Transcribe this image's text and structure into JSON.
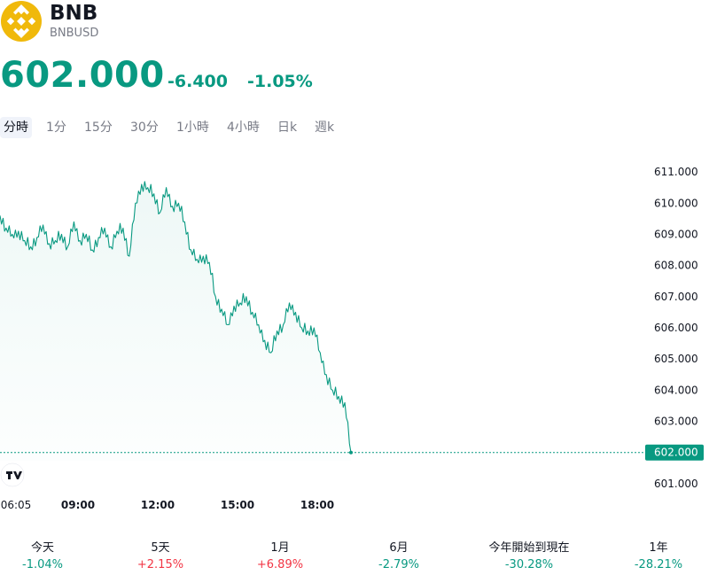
{
  "header": {
    "symbol": "BNB",
    "pair": "BNBUSD",
    "logo_icon": "bnb-logo-icon",
    "logo_color": "#f0b90b"
  },
  "quote": {
    "price": "602.000",
    "change": "-6.400",
    "change_percent": "-1.05%",
    "color": "#089981"
  },
  "tabs": [
    {
      "label": "分時",
      "active": true
    },
    {
      "label": "1分",
      "active": false
    },
    {
      "label": "15分",
      "active": false
    },
    {
      "label": "30分",
      "active": false
    },
    {
      "label": "1小時",
      "active": false
    },
    {
      "label": "4小時",
      "active": false
    },
    {
      "label": "日k",
      "active": false
    },
    {
      "label": "週k",
      "active": false
    }
  ],
  "chart_data": {
    "type": "area",
    "x_ticks": [
      "06:05",
      "09:00",
      "12:00",
      "15:00",
      "18:00"
    ],
    "y_ticks": [
      "611.000",
      "610.000",
      "609.000",
      "608.000",
      "607.000",
      "606.000",
      "605.000",
      "604.000",
      "603.000",
      "602.000",
      "601.000"
    ],
    "ylim": [
      600.6,
      611.4
    ],
    "last_price_label": "602.000",
    "line_color": "#089981",
    "watermark_icon": "tradingview-logo-icon",
    "series": [
      {
        "values": [
          609.6,
          609.2,
          609.0,
          609.1,
          608.8,
          608.6,
          608.9,
          609.3,
          608.7,
          608.8,
          609.0,
          608.6,
          609.4,
          608.8,
          609.0,
          608.5,
          608.9,
          609.2,
          608.6,
          609.1,
          609.2,
          608.3,
          610.0,
          610.6,
          610.5,
          610.3,
          609.7,
          610.5,
          609.9,
          610.0,
          609.4,
          608.5,
          608.2,
          608.3,
          608.1,
          607.0,
          606.6,
          606.1,
          606.7,
          606.8,
          607.0,
          606.5,
          606.1,
          605.6,
          605.2,
          605.9,
          606.1,
          606.8,
          606.5,
          606.0,
          605.9,
          606.0,
          605.2,
          604.5,
          604.0,
          603.8,
          603.6,
          602.0
        ]
      }
    ]
  },
  "performance": [
    {
      "label": "今天",
      "value": "-1.04%",
      "dir": "down"
    },
    {
      "label": "5天",
      "value": "+2.15%",
      "dir": "up"
    },
    {
      "label": "1月",
      "value": "+6.89%",
      "dir": "up"
    },
    {
      "label": "6月",
      "value": "-2.79%",
      "dir": "down"
    },
    {
      "label": "今年開始到現在",
      "value": "-30.28%",
      "dir": "down"
    },
    {
      "label": "1年",
      "value": "-28.21%",
      "dir": "down"
    }
  ]
}
